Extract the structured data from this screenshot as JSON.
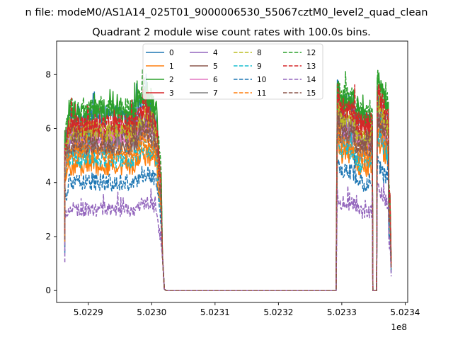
{
  "chart_data": {
    "type": "line",
    "title_line1": "n file: modeM0/AS1A14_025T01_9000006530_55067cztM0_level2_quad_clean",
    "title_line2": "Quadrant 2 module wise count rates with 100.0s bins.",
    "xlabel": "",
    "ylabel": "",
    "x_offset_label": "1e8",
    "xlim": [
      502285000.0,
      502340400.0
    ],
    "ylim": [
      -0.44,
      9.24
    ],
    "x_ticks": [
      {
        "value": 502290000.0,
        "label": "5.0229"
      },
      {
        "value": 502300000.0,
        "label": "5.0230"
      },
      {
        "value": 502310000.0,
        "label": "5.0231"
      },
      {
        "value": 502320000.0,
        "label": "5.0232"
      },
      {
        "value": 502330000.0,
        "label": "5.0233"
      },
      {
        "value": 502340000.0,
        "label": "5.0234"
      }
    ],
    "y_ticks": [
      {
        "value": 0,
        "label": "0"
      },
      {
        "value": 2,
        "label": "2"
      },
      {
        "value": 4,
        "label": "4"
      },
      {
        "value": 6,
        "label": "6"
      },
      {
        "value": 8,
        "label": "8"
      }
    ],
    "grid": false,
    "legend_position": "top-center",
    "legend_columns": 4,
    "segments": {
      "seg1": [
        502286300.0,
        502301500.0
      ],
      "seg2": [
        502329300.0,
        502334800.0
      ],
      "seg3": [
        502335600.0,
        502337600.0
      ]
    },
    "series": [
      {
        "name": "0",
        "color": "#1f77b4",
        "style": "solid",
        "level1": 6.4,
        "level2": 6.9,
        "level3": 6.6
      },
      {
        "name": "1",
        "color": "#ff7f0e",
        "style": "solid",
        "level1": 4.6,
        "level2": 5.0,
        "level3": 5.1
      },
      {
        "name": "2",
        "color": "#2ca02c",
        "style": "solid",
        "level1": 6.6,
        "level2": 7.0,
        "level3": 7.1
      },
      {
        "name": "3",
        "color": "#d62728",
        "style": "solid",
        "level1": 6.0,
        "level2": 6.6,
        "level3": 6.6
      },
      {
        "name": "4",
        "color": "#9467bd",
        "style": "solid",
        "level1": 5.7,
        "level2": 6.0,
        "level3": 6.0
      },
      {
        "name": "5",
        "color": "#8c564b",
        "style": "solid",
        "level1": 5.8,
        "level2": 6.2,
        "level3": 6.2
      },
      {
        "name": "6",
        "color": "#e377c2",
        "style": "solid",
        "level1": 5.5,
        "level2": 5.8,
        "level3": 5.8
      },
      {
        "name": "7",
        "color": "#7f7f7f",
        "style": "solid",
        "level1": 5.3,
        "level2": 5.5,
        "level3": 5.6
      },
      {
        "name": "8",
        "color": "#bcbd22",
        "style": "dashed",
        "level1": 5.9,
        "level2": 6.3,
        "level3": 6.4
      },
      {
        "name": "9",
        "color": "#17becf",
        "style": "dashed",
        "level1": 4.9,
        "level2": 5.2,
        "level3": 5.3
      },
      {
        "name": "10",
        "color": "#1f77b4",
        "style": "dashed",
        "level1": 4.0,
        "level2": 4.4,
        "level3": 4.3
      },
      {
        "name": "11",
        "color": "#ff7f0e",
        "style": "dashed",
        "level1": 5.1,
        "level2": 5.5,
        "level3": 5.6
      },
      {
        "name": "12",
        "color": "#2ca02c",
        "style": "dashed",
        "level1": 6.7,
        "level2": 7.2,
        "level3": 7.2
      },
      {
        "name": "13",
        "color": "#d62728",
        "style": "dashed",
        "level1": 6.1,
        "level2": 6.7,
        "level3": 6.8
      },
      {
        "name": "14",
        "color": "#9467bd",
        "style": "dashed",
        "level1": 3.0,
        "level2": 3.2,
        "level3": 3.5
      },
      {
        "name": "15",
        "color": "#8c564b",
        "style": "dashed",
        "level1": 5.4,
        "level2": 5.8,
        "level3": 5.8
      }
    ]
  }
}
